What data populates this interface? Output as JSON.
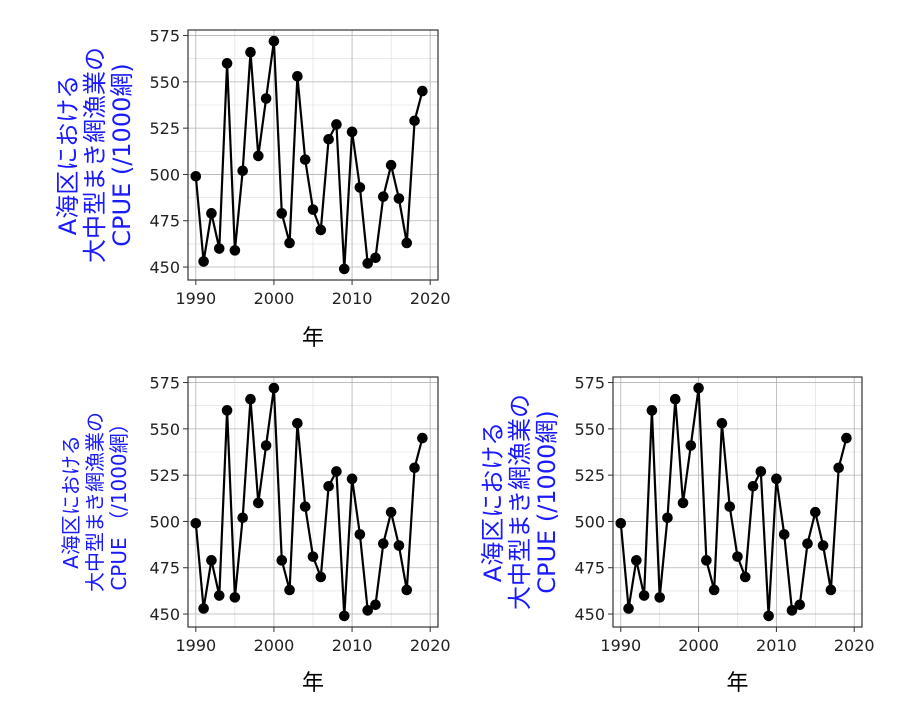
{
  "colors": {
    "ylabel": "#1a1aff",
    "series": "#000000",
    "grid_major": "#b3b3b3",
    "grid_minor": "#dcdcdc",
    "frame": "#333333",
    "background": "#ffffff"
  },
  "chart_data": [
    {
      "type": "line",
      "xlabel": "年",
      "ylabel_lines": [
        "A海区における",
        "大中型まき網漁業の",
        "CPUE (/1000網)"
      ],
      "xticks": [
        1990,
        2000,
        2010,
        2020
      ],
      "yticks": [
        450,
        475,
        500,
        525,
        550,
        575
      ],
      "xlim": [
        1989,
        2021
      ],
      "ylim": [
        443,
        578
      ],
      "grid": true,
      "x": [
        1990,
        1991,
        1992,
        1993,
        1994,
        1995,
        1996,
        1997,
        1998,
        1999,
        2000,
        2001,
        2002,
        2003,
        2004,
        2005,
        2006,
        2007,
        2008,
        2009,
        2010,
        2011,
        2012,
        2013,
        2014,
        2015,
        2016,
        2017,
        2018,
        2019
      ],
      "values": [
        499,
        453,
        479,
        460,
        560,
        459,
        502,
        566,
        510,
        541,
        572,
        479,
        463,
        553,
        508,
        481,
        470,
        519,
        527,
        449,
        523,
        493,
        452,
        455,
        488,
        505,
        487,
        463,
        529,
        545
      ]
    },
    {
      "type": "line",
      "xlabel": "年",
      "ylabel_lines": [
        "A海区における",
        "大中型まき網漁業の",
        "CPUE （/1000網）"
      ],
      "xticks": [
        1990,
        2000,
        2010,
        2020
      ],
      "yticks": [
        450,
        475,
        500,
        525,
        550,
        575
      ],
      "xlim": [
        1989,
        2021
      ],
      "ylim": [
        443,
        578
      ],
      "grid": true,
      "x": [
        1990,
        1991,
        1992,
        1993,
        1994,
        1995,
        1996,
        1997,
        1998,
        1999,
        2000,
        2001,
        2002,
        2003,
        2004,
        2005,
        2006,
        2007,
        2008,
        2009,
        2010,
        2011,
        2012,
        2013,
        2014,
        2015,
        2016,
        2017,
        2018,
        2019
      ],
      "values": [
        499,
        453,
        479,
        460,
        560,
        459,
        502,
        566,
        510,
        541,
        572,
        479,
        463,
        553,
        508,
        481,
        470,
        519,
        527,
        449,
        523,
        493,
        452,
        455,
        488,
        505,
        487,
        463,
        529,
        545
      ]
    },
    {
      "type": "line",
      "xlabel": "年",
      "ylabel_lines": [
        "A海区における",
        "大中型まき網漁業の",
        "CPUE (/1000網)"
      ],
      "xticks": [
        1990,
        2000,
        2010,
        2020
      ],
      "yticks": [
        450,
        475,
        500,
        525,
        550,
        575
      ],
      "xlim": [
        1989,
        2021
      ],
      "ylim": [
        443,
        578
      ],
      "grid": true,
      "x": [
        1990,
        1991,
        1992,
        1993,
        1994,
        1995,
        1996,
        1997,
        1998,
        1999,
        2000,
        2001,
        2002,
        2003,
        2004,
        2005,
        2006,
        2007,
        2008,
        2009,
        2010,
        2011,
        2012,
        2013,
        2014,
        2015,
        2016,
        2017,
        2018,
        2019
      ],
      "values": [
        499,
        453,
        479,
        460,
        560,
        459,
        502,
        566,
        510,
        541,
        572,
        479,
        463,
        553,
        508,
        481,
        470,
        519,
        527,
        449,
        523,
        493,
        452,
        455,
        488,
        505,
        487,
        463,
        529,
        545
      ]
    }
  ]
}
